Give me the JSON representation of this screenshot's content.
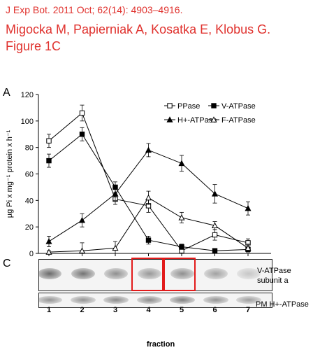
{
  "header": {
    "citation": "J Exp Bot. 2011 Oct; 62(14): 4903–4916.",
    "authors": "Migocka M, Papierniak A, Kosatka E, Klobus G.",
    "figure": "Figure 1C"
  },
  "colors": {
    "header_red": "#e0322e",
    "highlight_red": "#e21a1a"
  },
  "panels": {
    "a": "A",
    "c": "C"
  },
  "chart_data": {
    "type": "line",
    "categories": [
      "1",
      "2",
      "3",
      "4",
      "5",
      "6",
      "7"
    ],
    "ylabel": "µg Pi x mg⁻¹ protein x h⁻¹",
    "xlabel": "fraction",
    "ylim": [
      0,
      120
    ],
    "yticks": [
      0,
      20,
      40,
      60,
      80,
      100,
      120
    ],
    "legend": "top-right",
    "series": [
      {
        "name": "PPase",
        "marker": "open-square",
        "values": [
          85,
          106,
          41,
          36,
          2,
          14,
          8
        ],
        "errors": [
          5,
          6,
          4,
          5,
          2,
          4,
          3
        ]
      },
      {
        "name": "V-ATPase",
        "marker": "filled-square",
        "values": [
          70,
          90,
          50,
          10,
          5,
          2,
          3
        ],
        "errors": [
          5,
          5,
          4,
          3,
          2,
          1,
          1
        ]
      },
      {
        "name": "H+-ATPase",
        "marker": "filled-triangle",
        "values": [
          9,
          25,
          45,
          78,
          68,
          45,
          34
        ],
        "errors": [
          4,
          5,
          5,
          5,
          6,
          7,
          5
        ]
      },
      {
        "name": "F-ATPase",
        "marker": "open-triangle",
        "values": [
          1,
          2,
          4,
          42,
          27,
          21,
          4
        ],
        "errors": [
          1,
          6,
          5,
          5,
          4,
          3,
          3
        ]
      }
    ]
  },
  "blot": {
    "lanes": [
      "1",
      "2",
      "3",
      "4",
      "5",
      "6",
      "7"
    ],
    "top_label_line1": "V-ATPase",
    "top_label_line2": "subunit a",
    "bottom_label": "PM H+-ATPase",
    "highlighted_lanes": [
      "4",
      "5"
    ],
    "xlabel": "fraction"
  }
}
